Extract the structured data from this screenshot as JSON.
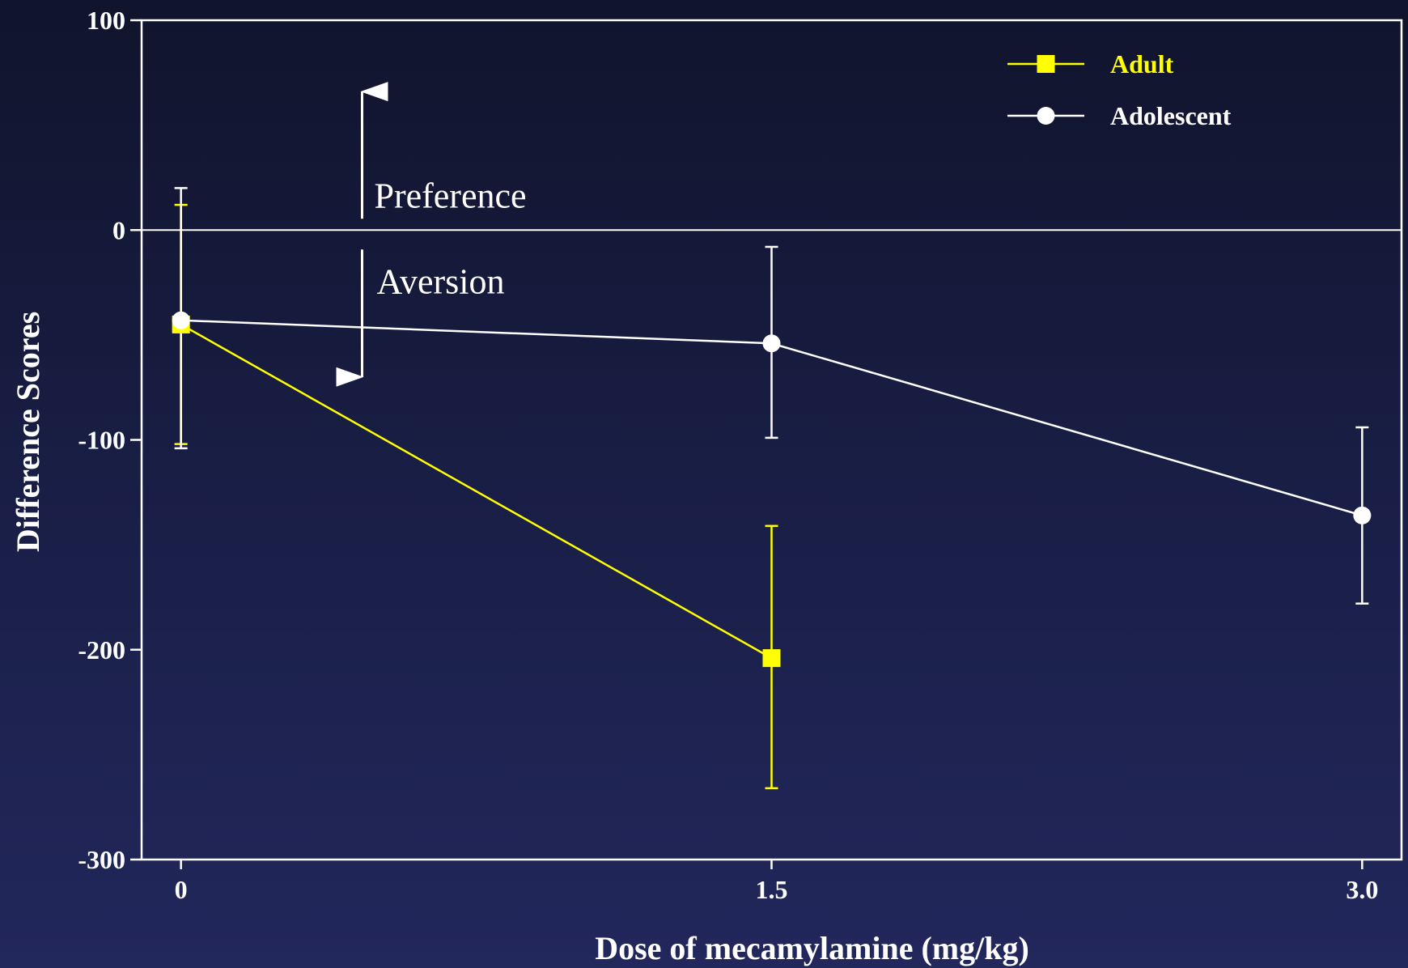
{
  "chart_data": {
    "type": "line",
    "x": [
      0,
      1.5,
      3.0
    ],
    "x_tick_labels": [
      "0",
      "1.5",
      "3.0"
    ],
    "y_ticks": [
      100,
      0,
      -100,
      -200,
      -300
    ],
    "y_tick_labels": [
      "100",
      "0",
      "-100",
      "-200",
      "-300"
    ],
    "xlim": [
      -0.1,
      3.1
    ],
    "ylim": [
      -300,
      100
    ],
    "xlabel": "Dose of mecamylamine (mg/kg)",
    "ylabel": "Difference Scores",
    "title": "",
    "grid": false,
    "legend_position": "top-right",
    "reference_line_y": 0,
    "series": [
      {
        "name": "Adult",
        "color": "#ffff00",
        "marker": "square",
        "points": [
          {
            "x": 0,
            "y": -45,
            "err_low": -102,
            "err_high": 12
          },
          {
            "x": 1.5,
            "y": -204,
            "err_low": -266,
            "err_high": -141
          }
        ]
      },
      {
        "name": "Adolescent",
        "color": "#ffffff",
        "marker": "circle",
        "points": [
          {
            "x": 0,
            "y": -43,
            "err_low": -104,
            "err_high": 20
          },
          {
            "x": 1.5,
            "y": -54,
            "err_low": -99,
            "err_high": -8
          },
          {
            "x": 3.0,
            "y": -136,
            "err_low": -178,
            "err_high": -94
          }
        ]
      }
    ],
    "annotations": [
      {
        "text": "Preference",
        "arrow": "up",
        "x": 0.46,
        "y": 0
      },
      {
        "text": "Aversion",
        "arrow": "down",
        "x": 0.46,
        "y": 0
      }
    ]
  },
  "colors": {
    "background_top": "#10142c",
    "background_bottom": "#22275c",
    "axis": "#ffffff"
  }
}
